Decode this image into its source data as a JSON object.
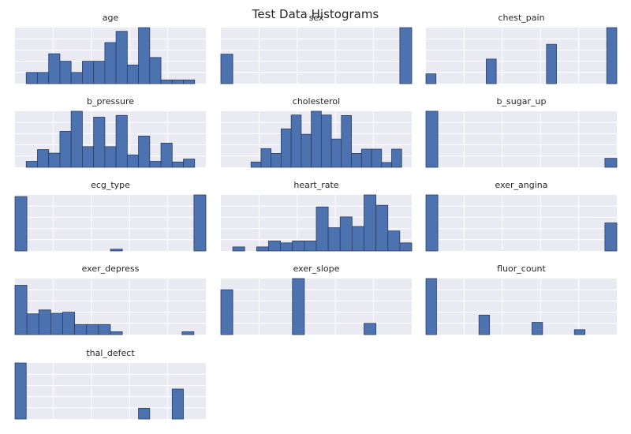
{
  "figure_title": "Test Data Histograms",
  "chart_data": [
    {
      "type": "bar",
      "title": "age",
      "values": [
        0,
        3,
        3,
        8,
        6,
        3,
        6,
        6,
        11,
        14,
        5,
        15,
        7,
        1,
        1,
        1,
        0
      ],
      "ylim": [
        0,
        15
      ],
      "grid_x": 5,
      "grid_y": 5,
      "grid": true
    },
    {
      "type": "bar",
      "title": "sex",
      "values": [
        10,
        0,
        0,
        0,
        0,
        0,
        0,
        0,
        0,
        0,
        0,
        0,
        0,
        0,
        0,
        19
      ],
      "ylim": [
        0,
        19
      ],
      "grid_x": 5,
      "grid_y": 5,
      "grid": true
    },
    {
      "type": "bar",
      "title": "chest_pain",
      "values": [
        1,
        0,
        0,
        0,
        0,
        0,
        2.5,
        0,
        0,
        0,
        0,
        0,
        4,
        0,
        0,
        0,
        0,
        0,
        5.7
      ],
      "ylim": [
        0,
        5.7
      ],
      "grid_x": 5,
      "grid_y": 5,
      "grid": true
    },
    {
      "type": "bar",
      "title": "b_pressure",
      "values": [
        0,
        1,
        3,
        2.4,
        6.1,
        9.5,
        3.5,
        8.5,
        3.5,
        8.8,
        2.1,
        5.3,
        1,
        4.1,
        0.9,
        1.4,
        0
      ],
      "ylim": [
        0,
        9.5
      ],
      "grid_x": 5,
      "grid_y": 5,
      "grid": true
    },
    {
      "type": "bar",
      "title": "cholesterol",
      "values": [
        0,
        0,
        0,
        1,
        3.5,
        2.6,
        7.2,
        9.8,
        6.2,
        10.5,
        9.8,
        5.3,
        9.7,
        2.6,
        3.4,
        3.4,
        0.9,
        3.4,
        0
      ],
      "ylim": [
        0,
        10.5
      ],
      "grid_x": 5,
      "grid_y": 5,
      "grid": true
    },
    {
      "type": "bar",
      "title": "b_sugar_up",
      "values": [
        25,
        0,
        0,
        0,
        0,
        0,
        0,
        0,
        0,
        0,
        0,
        0,
        0,
        0,
        0,
        4
      ],
      "ylim": [
        0,
        25
      ],
      "grid_x": 5,
      "grid_y": 5,
      "grid": true
    },
    {
      "type": "bar",
      "title": "ecg_type",
      "values": [
        15.8,
        0,
        0,
        0,
        0,
        0,
        0,
        0,
        0.5,
        0,
        0,
        0,
        0,
        0,
        0,
        16.3
      ],
      "ylim": [
        0,
        16.3
      ],
      "grid_x": 5,
      "grid_y": 5,
      "grid": true
    },
    {
      "type": "bar",
      "title": "heart_rate",
      "values": [
        0,
        1,
        0,
        1,
        2.5,
        2,
        2.5,
        2.5,
        11,
        5.8,
        8.5,
        6.1,
        14,
        11.4,
        5,
        2
      ],
      "ylim": [
        0,
        14
      ],
      "grid_x": 5,
      "grid_y": 5,
      "grid": true
    },
    {
      "type": "bar",
      "title": "exer_angina",
      "values": [
        22,
        0,
        0,
        0,
        0,
        0,
        0,
        0,
        0,
        0,
        0,
        0,
        0,
        0,
        0,
        11
      ],
      "ylim": [
        0,
        22
      ],
      "grid_x": 5,
      "grid_y": 5,
      "grid": true
    },
    {
      "type": "bar",
      "title": "exer_depress",
      "values": [
        8.8,
        3.7,
        4.4,
        3.8,
        4,
        1.8,
        1.8,
        1.8,
        0.5,
        0,
        0,
        0,
        0,
        0,
        0.5,
        0
      ],
      "ylim": [
        0,
        10
      ],
      "grid_x": 5,
      "grid_y": 5,
      "grid": true
    },
    {
      "type": "bar",
      "title": "exer_slope",
      "values": [
        8,
        0,
        0,
        0,
        0,
        0,
        10,
        0,
        0,
        0,
        0,
        0,
        2,
        0,
        0,
        0
      ],
      "ylim": [
        0,
        10
      ],
      "grid_x": 5,
      "grid_y": 5,
      "grid": true
    },
    {
      "type": "bar",
      "title": "fluor_count",
      "values": [
        23,
        0,
        0,
        0,
        0,
        8,
        0,
        0,
        0,
        0,
        5,
        0,
        0,
        0,
        2,
        0,
        0,
        0
      ],
      "ylim": [
        0,
        23
      ],
      "grid_x": 5,
      "grid_y": 5,
      "grid": true
    },
    {
      "type": "bar",
      "title": "thal_defect",
      "values": [
        11.4,
        0,
        0,
        0,
        0,
        0,
        0,
        0,
        0,
        0,
        0,
        2.2,
        0,
        0,
        6.1,
        0,
        0
      ],
      "ylim": [
        0,
        11.4
      ],
      "grid_x": 5,
      "grid_y": 5,
      "grid": true
    }
  ]
}
